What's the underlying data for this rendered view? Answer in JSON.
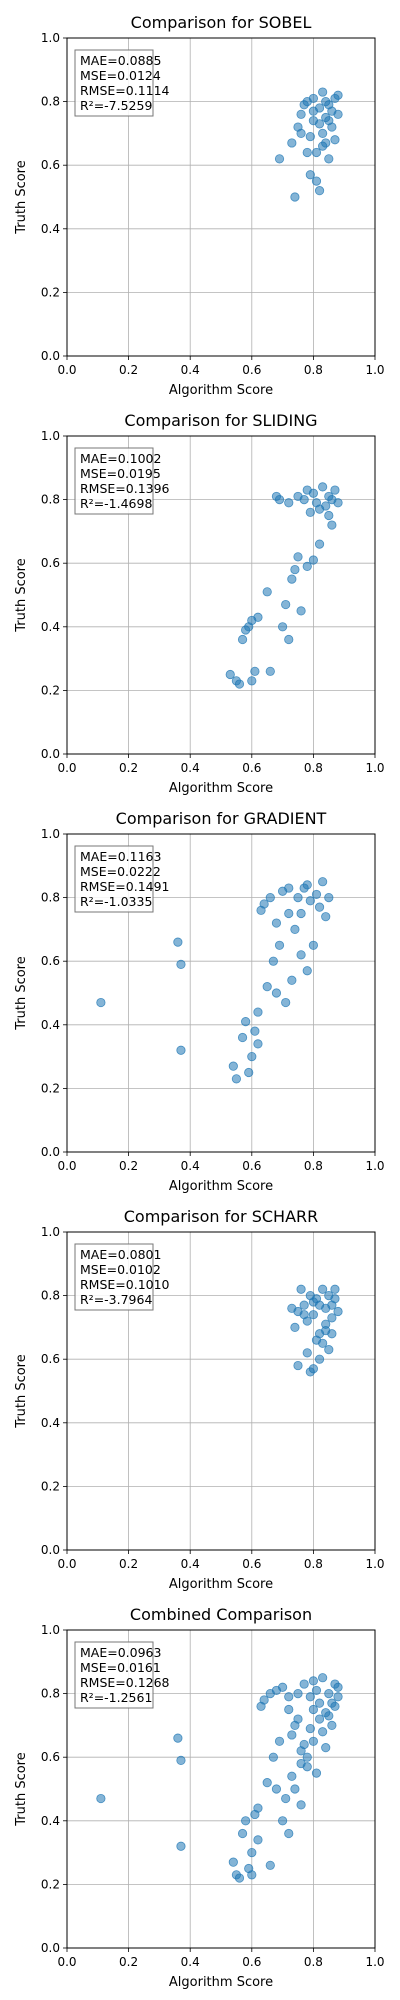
{
  "chart_data": [
    {
      "type": "scatter",
      "title": "Comparison for SOBEL",
      "xlabel": "Algorithm Score",
      "ylabel": "Truth Score",
      "xlim": [
        0,
        1
      ],
      "ylim": [
        0,
        1
      ],
      "xticks": [
        "0.0",
        "0.2",
        "0.4",
        "0.6",
        "0.8",
        "1.0"
      ],
      "yticks": [
        "0.0",
        "0.2",
        "0.4",
        "0.6",
        "0.8",
        "1.0"
      ],
      "grid": true,
      "stats": [
        "MAE=0.0885",
        "MSE=0.0124",
        "RMSE=0.1114",
        "R²=-7.5259"
      ],
      "marker_color": "#1f77b4",
      "points": [
        [
          0.69,
          0.62
        ],
        [
          0.73,
          0.67
        ],
        [
          0.74,
          0.5
        ],
        [
          0.75,
          0.72
        ],
        [
          0.76,
          0.76
        ],
        [
          0.77,
          0.79
        ],
        [
          0.78,
          0.8
        ],
        [
          0.79,
          0.57
        ],
        [
          0.8,
          0.74
        ],
        [
          0.8,
          0.81
        ],
        [
          0.81,
          0.55
        ],
        [
          0.81,
          0.64
        ],
        [
          0.82,
          0.78
        ],
        [
          0.82,
          0.52
        ],
        [
          0.83,
          0.83
        ],
        [
          0.83,
          0.7
        ],
        [
          0.84,
          0.75
        ],
        [
          0.84,
          0.67
        ],
        [
          0.85,
          0.79
        ],
        [
          0.85,
          0.62
        ],
        [
          0.86,
          0.77
        ],
        [
          0.86,
          0.72
        ],
        [
          0.87,
          0.81
        ],
        [
          0.87,
          0.68
        ],
        [
          0.88,
          0.82
        ],
        [
          0.88,
          0.76
        ],
        [
          0.78,
          0.64
        ],
        [
          0.79,
          0.69
        ],
        [
          0.82,
          0.73
        ],
        [
          0.84,
          0.8
        ],
        [
          0.8,
          0.77
        ],
        [
          0.76,
          0.7
        ],
        [
          0.83,
          0.66
        ],
        [
          0.85,
          0.74
        ]
      ]
    },
    {
      "type": "scatter",
      "title": "Comparison for SLIDING",
      "xlabel": "Algorithm Score",
      "ylabel": "Truth Score",
      "xlim": [
        0,
        1
      ],
      "ylim": [
        0,
        1
      ],
      "xticks": [
        "0.0",
        "0.2",
        "0.4",
        "0.6",
        "0.8",
        "1.0"
      ],
      "yticks": [
        "0.0",
        "0.2",
        "0.4",
        "0.6",
        "0.8",
        "1.0"
      ],
      "grid": true,
      "stats": [
        "MAE=0.1002",
        "MSE=0.0195",
        "RMSE=0.1396",
        "R²=-1.4698"
      ],
      "marker_color": "#1f77b4",
      "points": [
        [
          0.53,
          0.25
        ],
        [
          0.55,
          0.23
        ],
        [
          0.56,
          0.22
        ],
        [
          0.57,
          0.36
        ],
        [
          0.58,
          0.39
        ],
        [
          0.59,
          0.4
        ],
        [
          0.6,
          0.23
        ],
        [
          0.6,
          0.42
        ],
        [
          0.61,
          0.26
        ],
        [
          0.62,
          0.43
        ],
        [
          0.65,
          0.51
        ],
        [
          0.66,
          0.26
        ],
        [
          0.68,
          0.81
        ],
        [
          0.69,
          0.8
        ],
        [
          0.7,
          0.4
        ],
        [
          0.71,
          0.47
        ],
        [
          0.72,
          0.36
        ],
        [
          0.73,
          0.55
        ],
        [
          0.74,
          0.58
        ],
        [
          0.75,
          0.62
        ],
        [
          0.76,
          0.45
        ],
        [
          0.77,
          0.8
        ],
        [
          0.78,
          0.59
        ],
        [
          0.79,
          0.76
        ],
        [
          0.8,
          0.82
        ],
        [
          0.8,
          0.61
        ],
        [
          0.81,
          0.79
        ],
        [
          0.82,
          0.66
        ],
        [
          0.83,
          0.84
        ],
        [
          0.84,
          0.78
        ],
        [
          0.85,
          0.81
        ],
        [
          0.86,
          0.8
        ],
        [
          0.87,
          0.83
        ],
        [
          0.88,
          0.79
        ],
        [
          0.75,
          0.81
        ],
        [
          0.78,
          0.83
        ],
        [
          0.82,
          0.77
        ],
        [
          0.85,
          0.75
        ],
        [
          0.72,
          0.79
        ],
        [
          0.86,
          0.72
        ]
      ]
    },
    {
      "type": "scatter",
      "title": "Comparison for GRADIENT",
      "xlabel": "Algorithm Score",
      "ylabel": "Truth Score",
      "xlim": [
        0,
        1
      ],
      "ylim": [
        0,
        1
      ],
      "xticks": [
        "0.0",
        "0.2",
        "0.4",
        "0.6",
        "0.8",
        "1.0"
      ],
      "yticks": [
        "0.0",
        "0.2",
        "0.4",
        "0.6",
        "0.8",
        "1.0"
      ],
      "grid": true,
      "stats": [
        "MAE=0.1163",
        "MSE=0.0222",
        "RMSE=0.1491",
        "R²=-1.0335"
      ],
      "marker_color": "#1f77b4",
      "points": [
        [
          0.11,
          0.47
        ],
        [
          0.36,
          0.66
        ],
        [
          0.37,
          0.59
        ],
        [
          0.37,
          0.32
        ],
        [
          0.54,
          0.27
        ],
        [
          0.55,
          0.23
        ],
        [
          0.57,
          0.36
        ],
        [
          0.58,
          0.41
        ],
        [
          0.59,
          0.25
        ],
        [
          0.6,
          0.3
        ],
        [
          0.61,
          0.38
        ],
        [
          0.62,
          0.44
        ],
        [
          0.63,
          0.76
        ],
        [
          0.64,
          0.78
        ],
        [
          0.65,
          0.52
        ],
        [
          0.66,
          0.8
        ],
        [
          0.67,
          0.6
        ],
        [
          0.68,
          0.72
        ],
        [
          0.69,
          0.65
        ],
        [
          0.7,
          0.82
        ],
        [
          0.71,
          0.47
        ],
        [
          0.72,
          0.75
        ],
        [
          0.73,
          0.54
        ],
        [
          0.74,
          0.7
        ],
        [
          0.75,
          0.8
        ],
        [
          0.76,
          0.62
        ],
        [
          0.77,
          0.83
        ],
        [
          0.78,
          0.57
        ],
        [
          0.79,
          0.79
        ],
        [
          0.8,
          0.65
        ],
        [
          0.81,
          0.81
        ],
        [
          0.82,
          0.77
        ],
        [
          0.83,
          0.85
        ],
        [
          0.84,
          0.74
        ],
        [
          0.85,
          0.8
        ],
        [
          0.72,
          0.83
        ],
        [
          0.76,
          0.75
        ],
        [
          0.68,
          0.5
        ],
        [
          0.62,
          0.34
        ],
        [
          0.78,
          0.84
        ]
      ]
    },
    {
      "type": "scatter",
      "title": "Comparison for SCHARR",
      "xlabel": "Algorithm Score",
      "ylabel": "Truth Score",
      "xlim": [
        0,
        1
      ],
      "ylim": [
        0,
        1
      ],
      "xticks": [
        "0.0",
        "0.2",
        "0.4",
        "0.6",
        "0.8",
        "1.0"
      ],
      "yticks": [
        "0.0",
        "0.2",
        "0.4",
        "0.6",
        "0.8",
        "1.0"
      ],
      "grid": true,
      "stats": [
        "MAE=0.0801",
        "MSE=0.0102",
        "RMSE=0.1010",
        "R²=-3.7964"
      ],
      "marker_color": "#1f77b4",
      "points": [
        [
          0.73,
          0.76
        ],
        [
          0.74,
          0.7
        ],
        [
          0.75,
          0.58
        ],
        [
          0.76,
          0.82
        ],
        [
          0.77,
          0.77
        ],
        [
          0.78,
          0.62
        ],
        [
          0.79,
          0.56
        ],
        [
          0.8,
          0.74
        ],
        [
          0.8,
          0.57
        ],
        [
          0.81,
          0.79
        ],
        [
          0.82,
          0.68
        ],
        [
          0.82,
          0.6
        ],
        [
          0.83,
          0.82
        ],
        [
          0.83,
          0.65
        ],
        [
          0.84,
          0.76
        ],
        [
          0.84,
          0.71
        ],
        [
          0.85,
          0.8
        ],
        [
          0.85,
          0.63
        ],
        [
          0.86,
          0.77
        ],
        [
          0.86,
          0.73
        ],
        [
          0.87,
          0.82
        ],
        [
          0.87,
          0.79
        ],
        [
          0.88,
          0.75
        ],
        [
          0.75,
          0.75
        ],
        [
          0.78,
          0.72
        ],
        [
          0.81,
          0.66
        ],
        [
          0.79,
          0.8
        ],
        [
          0.84,
          0.69
        ],
        [
          0.77,
          0.74
        ],
        [
          0.86,
          0.68
        ],
        [
          0.8,
          0.78
        ],
        [
          0.82,
          0.77
        ]
      ]
    },
    {
      "type": "scatter",
      "title": "Combined Comparison",
      "xlabel": "Algorithm Score",
      "ylabel": "Truth Score",
      "xlim": [
        0,
        1
      ],
      "ylim": [
        0,
        1
      ],
      "xticks": [
        "0.0",
        "0.2",
        "0.4",
        "0.6",
        "0.8",
        "1.0"
      ],
      "yticks": [
        "0.0",
        "0.2",
        "0.4",
        "0.6",
        "0.8",
        "1.0"
      ],
      "grid": true,
      "stats": [
        "MAE=0.0963",
        "MSE=0.0161",
        "RMSE=0.1268",
        "R²=-1.2561"
      ],
      "marker_color": "#1f77b4",
      "points": [
        [
          0.11,
          0.47
        ],
        [
          0.36,
          0.66
        ],
        [
          0.37,
          0.59
        ],
        [
          0.37,
          0.32
        ],
        [
          0.54,
          0.27
        ],
        [
          0.55,
          0.23
        ],
        [
          0.56,
          0.22
        ],
        [
          0.57,
          0.36
        ],
        [
          0.58,
          0.4
        ],
        [
          0.59,
          0.25
        ],
        [
          0.6,
          0.3
        ],
        [
          0.61,
          0.42
        ],
        [
          0.62,
          0.44
        ],
        [
          0.63,
          0.76
        ],
        [
          0.64,
          0.78
        ],
        [
          0.65,
          0.52
        ],
        [
          0.66,
          0.8
        ],
        [
          0.67,
          0.6
        ],
        [
          0.68,
          0.81
        ],
        [
          0.69,
          0.65
        ],
        [
          0.7,
          0.82
        ],
        [
          0.71,
          0.47
        ],
        [
          0.72,
          0.75
        ],
        [
          0.73,
          0.54
        ],
        [
          0.74,
          0.7
        ],
        [
          0.75,
          0.8
        ],
        [
          0.76,
          0.62
        ],
        [
          0.77,
          0.83
        ],
        [
          0.78,
          0.57
        ],
        [
          0.79,
          0.79
        ],
        [
          0.8,
          0.65
        ],
        [
          0.81,
          0.81
        ],
        [
          0.82,
          0.77
        ],
        [
          0.83,
          0.85
        ],
        [
          0.84,
          0.74
        ],
        [
          0.85,
          0.8
        ],
        [
          0.86,
          0.77
        ],
        [
          0.87,
          0.83
        ],
        [
          0.88,
          0.79
        ],
        [
          0.73,
          0.67
        ],
        [
          0.74,
          0.5
        ],
        [
          0.76,
          0.58
        ],
        [
          0.79,
          0.69
        ],
        [
          0.81,
          0.55
        ],
        [
          0.82,
          0.72
        ],
        [
          0.84,
          0.63
        ],
        [
          0.86,
          0.7
        ],
        [
          0.88,
          0.82
        ],
        [
          0.75,
          0.72
        ],
        [
          0.78,
          0.6
        ],
        [
          0.8,
          0.75
        ],
        [
          0.83,
          0.68
        ],
        [
          0.85,
          0.73
        ],
        [
          0.87,
          0.76
        ],
        [
          0.77,
          0.64
        ],
        [
          0.8,
          0.84
        ],
        [
          0.72,
          0.79
        ],
        [
          0.68,
          0.5
        ],
        [
          0.62,
          0.34
        ],
        [
          0.6,
          0.23
        ],
        [
          0.66,
          0.26
        ],
        [
          0.7,
          0.4
        ],
        [
          0.72,
          0.36
        ],
        [
          0.76,
          0.45
        ]
      ]
    }
  ]
}
